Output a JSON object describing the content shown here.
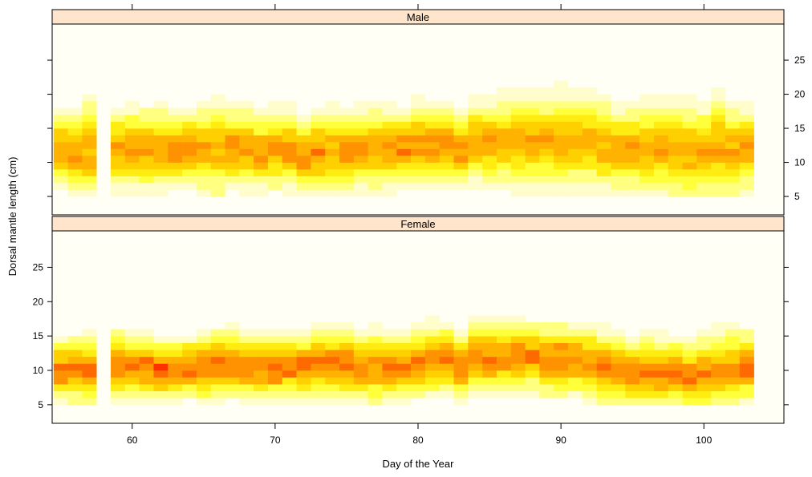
{
  "chart_data": {
    "type": "heatmap",
    "xlabel": "Day of the Year",
    "ylabel": "Dorsal mantle length (cm)",
    "x_ticks": [
      60,
      70,
      80,
      90,
      100
    ],
    "y_ticks": [
      5,
      10,
      15,
      20,
      25
    ],
    "xlim": [
      54.4,
      105.6
    ],
    "ylim": [
      2.3,
      30.3
    ],
    "x_range": [
      55,
      103
    ],
    "density_colors": [
      "#fffdcc",
      "#ffff80",
      "#ffff3a",
      "#ffec10",
      "#ffd000",
      "#ffb200",
      "#ff9200",
      "#ff6a00",
      "#ff3000"
    ],
    "background": "#fffff5",
    "strip_color": "#ffe5cc",
    "panels": [
      {
        "name": "Male",
        "skip_days": [
          58
        ],
        "data": [
          [
            55,
            12,
            2.7
          ],
          [
            56,
            11.5,
            2.9
          ],
          [
            57,
            12,
            3.5
          ],
          [
            59,
            12,
            2.8
          ],
          [
            60,
            12,
            2.9
          ],
          [
            61,
            12,
            2.8
          ],
          [
            62,
            12,
            3
          ],
          [
            63,
            11.5,
            2.6
          ],
          [
            64,
            12,
            2.7
          ],
          [
            65,
            12,
            2.9
          ],
          [
            66,
            12,
            3.4
          ],
          [
            67,
            12,
            2.8
          ],
          [
            68,
            12,
            2.8
          ],
          [
            69,
            11.5,
            2.6
          ],
          [
            70,
            12,
            2.8
          ],
          [
            71,
            12,
            2.8
          ],
          [
            72,
            11,
            2.7
          ],
          [
            73,
            11.5,
            2.8
          ],
          [
            74,
            11.5,
            3.2
          ],
          [
            75,
            11.5,
            2.9
          ],
          [
            76,
            12,
            2.7
          ],
          [
            77,
            12,
            3
          ],
          [
            78,
            12,
            2.8
          ],
          [
            79,
            12,
            2.7
          ],
          [
            80,
            12.5,
            2.9
          ],
          [
            81,
            12.5,
            2.8
          ],
          [
            82,
            12.5,
            2.8
          ],
          [
            83,
            12,
            2.6
          ],
          [
            84,
            13,
            2.8
          ],
          [
            85,
            13,
            2.9
          ],
          [
            86,
            13,
            3.2
          ],
          [
            87,
            13,
            3.4
          ],
          [
            88,
            13,
            3.4
          ],
          [
            89,
            13,
            3.3
          ],
          [
            90,
            13,
            3.5
          ],
          [
            91,
            13,
            3.4
          ],
          [
            92,
            13,
            3.2
          ],
          [
            93,
            12.5,
            3.4
          ],
          [
            94,
            12,
            3
          ],
          [
            95,
            12,
            3.2
          ],
          [
            96,
            12,
            3.3
          ],
          [
            97,
            12,
            3.3
          ],
          [
            98,
            12,
            3.4
          ],
          [
            99,
            11.5,
            3.6
          ],
          [
            100,
            11.5,
            3.2
          ],
          [
            101,
            12,
            3.8
          ],
          [
            102,
            11.5,
            3.2
          ],
          [
            103,
            12,
            3
          ]
        ]
      },
      {
        "name": "Female",
        "skip_days": [
          58
        ],
        "data": [
          [
            55,
            10,
            2.1
          ],
          [
            56,
            10,
            2.3
          ],
          [
            57,
            10,
            2.3
          ],
          [
            59,
            10.5,
            2.4
          ],
          [
            60,
            10.5,
            2.2
          ],
          [
            61,
            10.5,
            2.3
          ],
          [
            62,
            10,
            2.2
          ],
          [
            63,
            10,
            2.1
          ],
          [
            64,
            10.5,
            2.2
          ],
          [
            65,
            10.5,
            2.3
          ],
          [
            66,
            11,
            2.4
          ],
          [
            67,
            11,
            2.3
          ],
          [
            68,
            10.5,
            2.2
          ],
          [
            69,
            10.5,
            2.3
          ],
          [
            70,
            10.5,
            2.2
          ],
          [
            71,
            10.5,
            2.2
          ],
          [
            72,
            10.5,
            2.3
          ],
          [
            73,
            11,
            2.4
          ],
          [
            74,
            11,
            2.5
          ],
          [
            75,
            11,
            2.6
          ],
          [
            76,
            10.5,
            2.3
          ],
          [
            77,
            10.5,
            2.6
          ],
          [
            78,
            10.5,
            2.4
          ],
          [
            79,
            10.5,
            2.3
          ],
          [
            80,
            11,
            2.4
          ],
          [
            81,
            11.5,
            2.5
          ],
          [
            82,
            11.5,
            2.4
          ],
          [
            83,
            10.5,
            2.4
          ],
          [
            84,
            12,
            2.5
          ],
          [
            85,
            12,
            2.4
          ],
          [
            86,
            12,
            2.5
          ],
          [
            87,
            12,
            2.5
          ],
          [
            88,
            12,
            2.4
          ],
          [
            89,
            11.5,
            2.6
          ],
          [
            90,
            11.5,
            2.5
          ],
          [
            91,
            11.5,
            2.4
          ],
          [
            92,
            11,
            2.5
          ],
          [
            93,
            10.5,
            2.5
          ],
          [
            94,
            10,
            2.4
          ],
          [
            95,
            9.5,
            2.4
          ],
          [
            96,
            9.5,
            2.5
          ],
          [
            97,
            9.5,
            2.5
          ],
          [
            98,
            9.5,
            2.4
          ],
          [
            99,
            9,
            2.4
          ],
          [
            100,
            9.5,
            2.6
          ],
          [
            101,
            10,
            2.7
          ],
          [
            102,
            10,
            2.9
          ],
          [
            103,
            10.5,
            2.5
          ]
        ]
      }
    ]
  }
}
